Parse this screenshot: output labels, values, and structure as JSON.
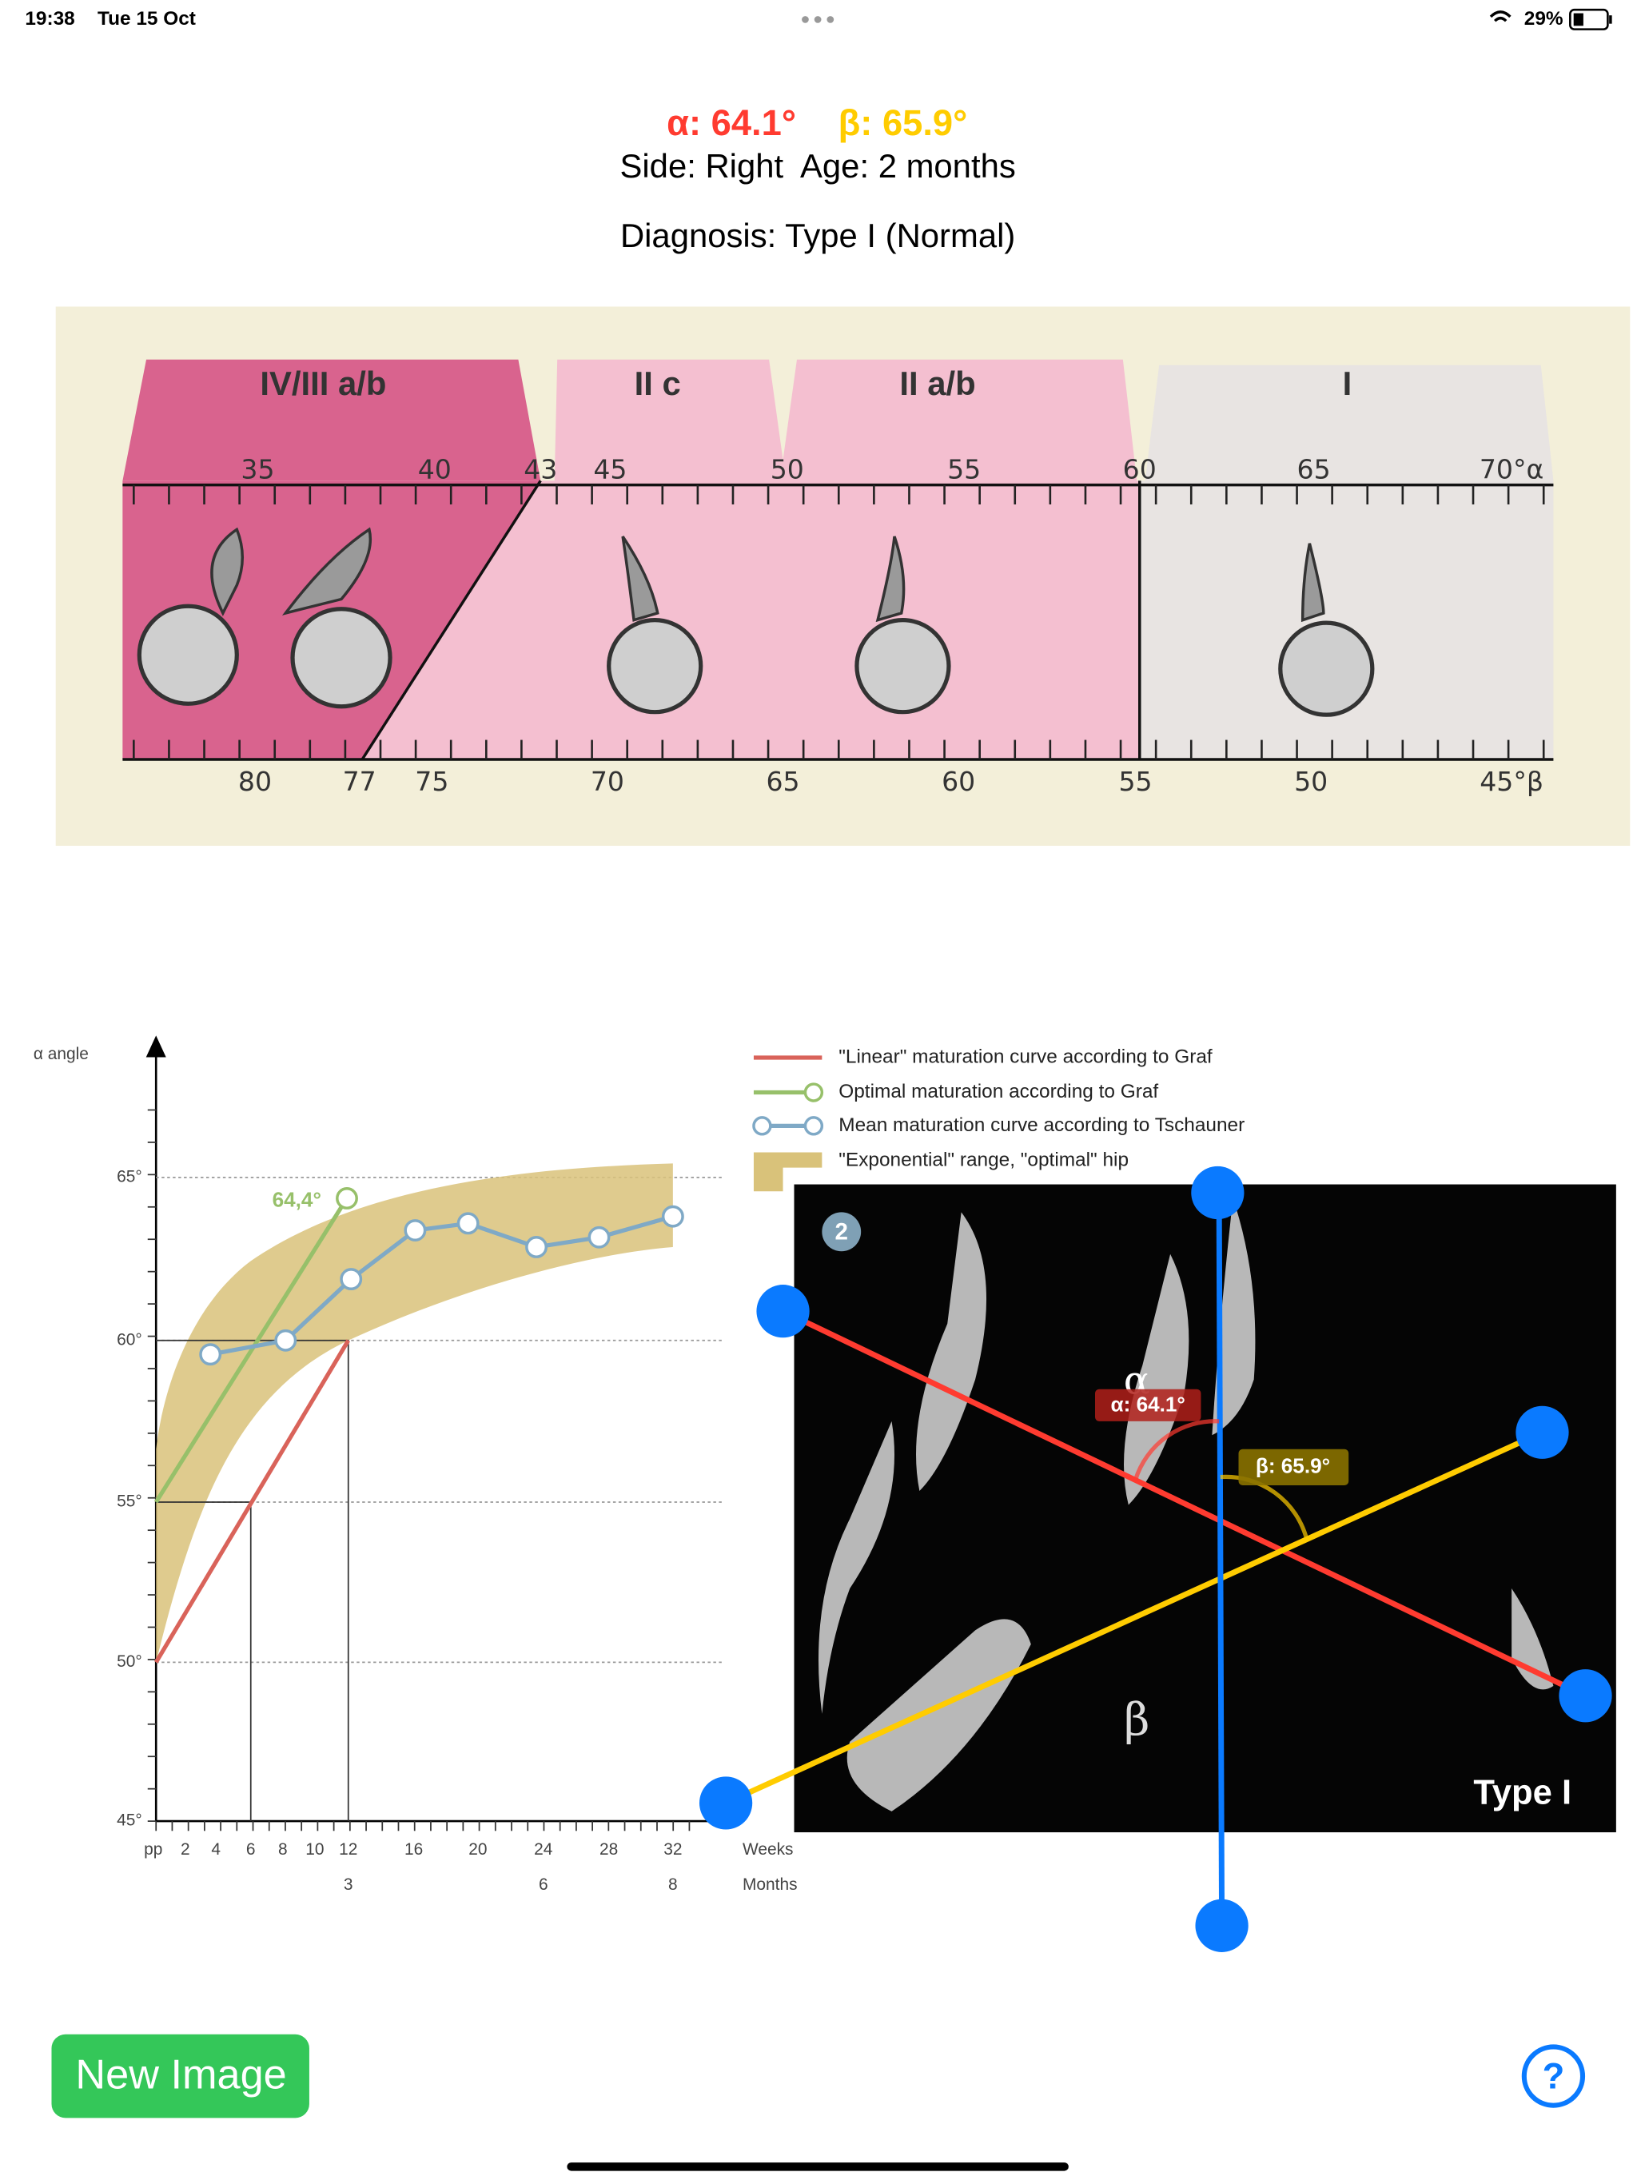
{
  "status_bar": {
    "time": "19:38",
    "date": "Tue 15 Oct",
    "battery": "29%"
  },
  "header": {
    "alpha": "α: 64.1°",
    "beta": "β: 65.9°",
    "side_age": "Side: Right  Age: 2 months",
    "diagnosis": "Diagnosis: Type I (Normal)"
  },
  "graf_chart": {
    "types": [
      "IV/III a/b",
      "II c",
      "II a/b",
      "I"
    ],
    "alpha_scale": [
      "35",
      "40",
      "43",
      "45",
      "50",
      "55",
      "60",
      "65",
      "70°α"
    ],
    "beta_scale": [
      "80",
      "77",
      "75",
      "70",
      "65",
      "60",
      "55",
      "50",
      "45°β"
    ]
  },
  "maturation_chart": {
    "y_axis_label": "α angle",
    "yticks": [
      "65°",
      "60°",
      "55°",
      "50°",
      "45°"
    ],
    "weeks": [
      "pp",
      "2",
      "4",
      "6",
      "8",
      "10",
      "12",
      "16",
      "20",
      "24",
      "28",
      "32"
    ],
    "months": [
      "3",
      "6",
      "8"
    ],
    "weeks_label": "Weeks",
    "months_label": "Months",
    "annotation": "64,4°",
    "legend": [
      "\"Linear\" maturation curve according to Graf",
      "Optimal maturation according to Graf",
      "Mean maturation curve according to Tschauner",
      "\"Exponential\" range, \"optimal\" hip"
    ]
  },
  "ultrasound": {
    "badge": "2",
    "alpha_symbol": "α",
    "alpha_label": "α: 64.1°",
    "beta_label": "β: 65.9°",
    "beta_symbol": "β",
    "classification": "Type I"
  },
  "buttons": {
    "new_image": "New Image",
    "help": "?"
  }
}
